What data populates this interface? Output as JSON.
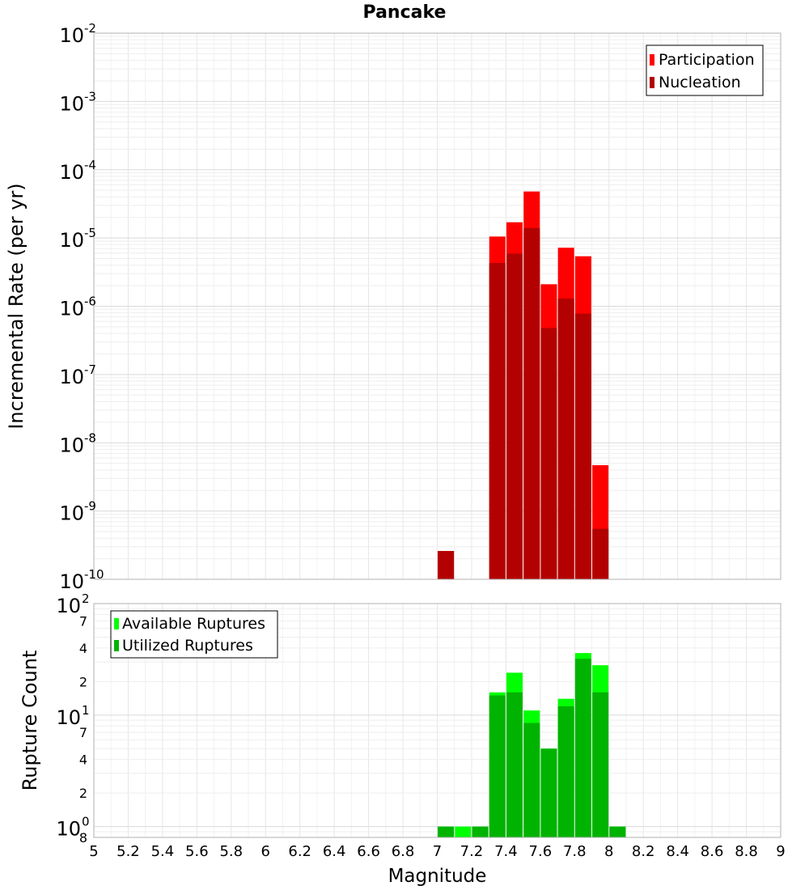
{
  "chart_data": [
    {
      "type": "bar",
      "title": "Pancake",
      "xlabel": "Magnitude",
      "ylabel": "Incremental Rate (per yr)",
      "yscale": "log",
      "xlim": [
        5,
        9
      ],
      "ylim": [
        1e-10,
        0.01
      ],
      "x_ticks": [
        "5",
        "5.2",
        "5.4",
        "5.6",
        "5.8",
        "6",
        "6.2",
        "6.4",
        "6.6",
        "6.8",
        "7",
        "7.2",
        "7.4",
        "7.6",
        "7.8",
        "8",
        "8.2",
        "8.4",
        "8.6",
        "8.8",
        "9"
      ],
      "y_ticks": [
        {
          "value": 0.01,
          "base": "10",
          "exp": "-2"
        },
        {
          "value": 0.001,
          "base": "10",
          "exp": "-3"
        },
        {
          "value": 0.0001,
          "base": "10",
          "exp": "-4"
        },
        {
          "value": 1e-05,
          "base": "10",
          "exp": "-5"
        },
        {
          "value": 1e-06,
          "base": "10",
          "exp": "-6"
        },
        {
          "value": 1e-07,
          "base": "10",
          "exp": "-7"
        },
        {
          "value": 1e-08,
          "base": "10",
          "exp": "-8"
        },
        {
          "value": 1e-09,
          "base": "10",
          "exp": "-9"
        },
        {
          "value": 1e-10,
          "base": "10",
          "exp": "-10"
        }
      ],
      "legend": "top-right",
      "series": [
        {
          "name": "Participation",
          "color": "#ff0000",
          "x": [
            7.05,
            7.35,
            7.45,
            7.55,
            7.65,
            7.75,
            7.85,
            7.95
          ],
          "values": [
            2.6e-10,
            1.05e-05,
            1.7e-05,
            4.8e-05,
            2.1e-06,
            7.2e-06,
            5.4e-06,
            4.7e-09
          ]
        },
        {
          "name": "Nucleation",
          "color": "#b30000",
          "x": [
            7.05,
            7.35,
            7.45,
            7.55,
            7.65,
            7.75,
            7.85,
            7.95
          ],
          "values": [
            2.6e-10,
            4.3e-06,
            5.9e-06,
            1.4e-05,
            4.8e-07,
            1.3e-06,
            7.8e-07,
            5.5e-10
          ]
        }
      ]
    },
    {
      "type": "bar",
      "title": "",
      "xlabel": "Magnitude",
      "ylabel": "Rupture Count",
      "yscale": "log",
      "xlim": [
        5,
        9
      ],
      "ylim": [
        0.8,
        100
      ],
      "y_major_ticks": [
        {
          "value": 1,
          "base": "10",
          "exp": "0"
        },
        {
          "value": 10,
          "base": "10",
          "exp": "1"
        },
        {
          "value": 100,
          "base": "10",
          "exp": "2"
        }
      ],
      "y_minor_ticks": [
        {
          "value": 0.8,
          "label": "8"
        },
        {
          "value": 2,
          "label": "2"
        },
        {
          "value": 4,
          "label": "4"
        },
        {
          "value": 7,
          "label": "7"
        },
        {
          "value": 20,
          "label": "2"
        },
        {
          "value": 40,
          "label": "4"
        },
        {
          "value": 70,
          "label": "7"
        }
      ],
      "legend": "top-left",
      "series": [
        {
          "name": "Available Ruptures",
          "color": "#00ff00",
          "x": [
            7.05,
            7.15,
            7.25,
            7.35,
            7.45,
            7.55,
            7.65,
            7.75,
            7.85,
            7.95,
            8.05
          ],
          "values": [
            1,
            1,
            1,
            16,
            24,
            11,
            5,
            14,
            36,
            28,
            1
          ]
        },
        {
          "name": "Utilized Ruptures",
          "color": "#00b300",
          "x": [
            7.05,
            7.15,
            7.25,
            7.35,
            7.45,
            7.55,
            7.65,
            7.75,
            7.85,
            7.95,
            8.05
          ],
          "values": [
            1,
            0,
            1,
            15,
            16,
            8.5,
            5,
            12,
            32,
            16,
            1
          ]
        }
      ]
    }
  ]
}
